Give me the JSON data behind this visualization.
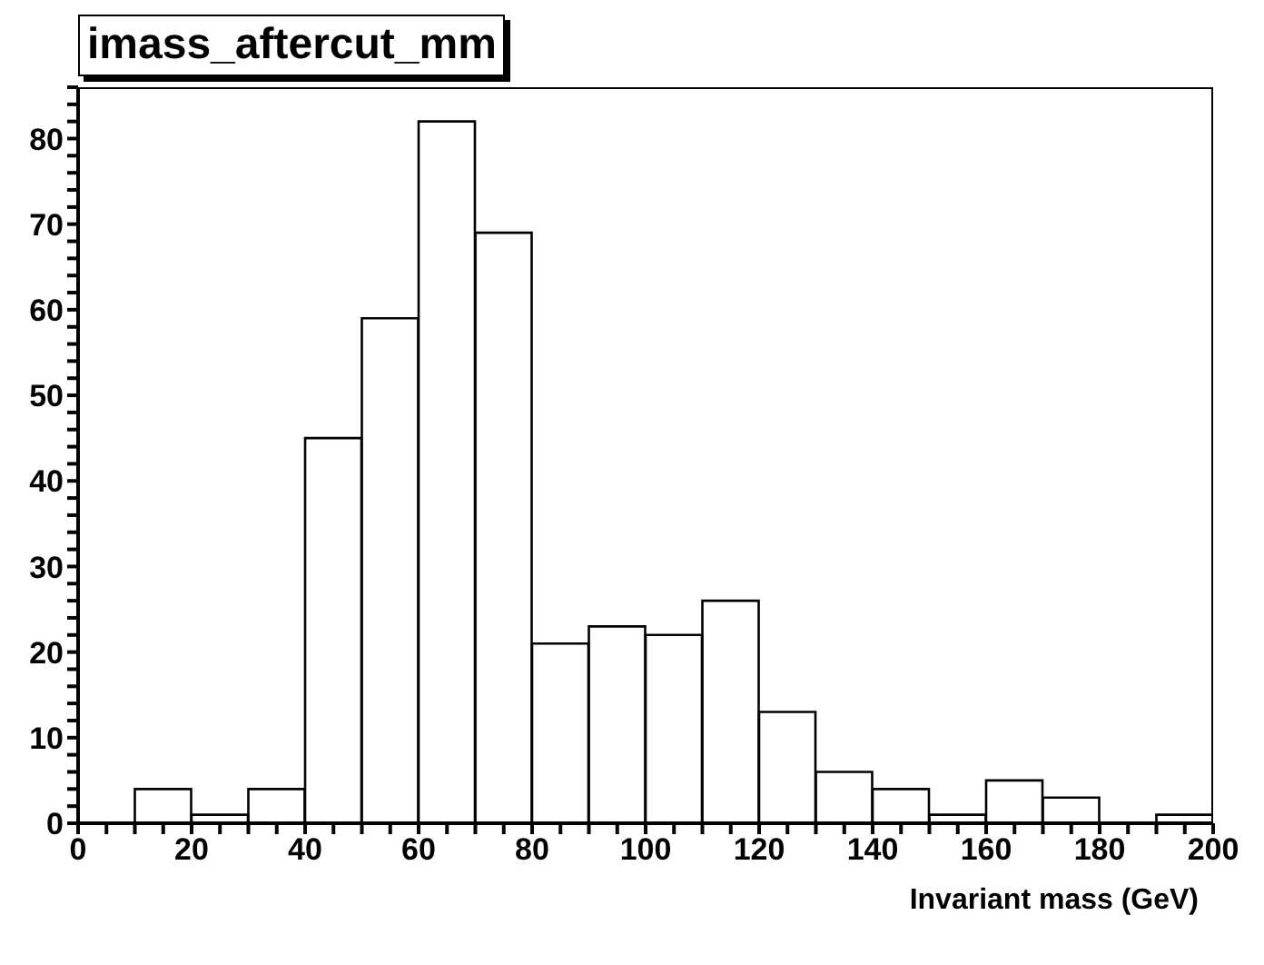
{
  "chart_data": {
    "type": "histogram",
    "title": "imass_aftercut_mm",
    "xlabel": "Invariant mass (GeV)",
    "bins": [
      0,
      10,
      20,
      30,
      40,
      50,
      60,
      70,
      80,
      90,
      100,
      110,
      120,
      130,
      140,
      150,
      160,
      170,
      180,
      190,
      200
    ],
    "values": [
      0,
      4,
      1,
      4,
      45,
      59,
      82,
      69,
      21,
      23,
      22,
      26,
      13,
      6,
      4,
      1,
      5,
      3,
      0,
      1
    ],
    "color": "#000000",
    "xlim": [
      0,
      200
    ],
    "xticks": [
      0,
      {
        "value": 5,
        "label": null
      },
      {
        "value": 10,
        "label": null
      },
      {
        "value": 15,
        "label": null
      },
      20,
      {
        "value": 25,
        "label": null
      },
      {
        "value": 30,
        "label": null
      },
      {
        "value": 35,
        "label": null
      },
      40,
      {
        "value": 45,
        "label": null
      },
      {
        "value": 50,
        "label": null
      },
      {
        "value": 55,
        "label": null
      },
      60,
      {
        "value": 65,
        "label": null
      },
      {
        "value": 70,
        "label": null
      },
      {
        "value": 75,
        "label": null
      },
      80,
      {
        "value": 85,
        "label": null
      },
      {
        "value": 90,
        "label": null
      },
      {
        "value": 95,
        "label": null
      },
      100,
      {
        "value": 105,
        "label": null
      },
      {
        "value": 110,
        "label": null
      },
      {
        "value": 115,
        "label": null
      },
      120,
      {
        "value": 125,
        "label": null
      },
      {
        "value": 130,
        "label": null
      },
      {
        "value": 135,
        "label": null
      },
      140,
      {
        "value": 145,
        "label": null
      },
      {
        "value": 150,
        "label": null
      },
      {
        "value": 155,
        "label": null
      },
      160,
      {
        "value": 165,
        "label": null
      },
      {
        "value": 170,
        "label": null
      },
      {
        "value": 175,
        "label": null
      },
      180,
      {
        "value": 185,
        "label": null
      },
      {
        "value": 190,
        "label": null
      },
      {
        "value": 195,
        "label": null
      },
      200
    ],
    "ylim": [
      0,
      86
    ],
    "yticks": [
      0,
      {
        "value": 2,
        "label": null
      },
      {
        "value": 4,
        "label": null
      },
      {
        "value": 6,
        "label": null
      },
      {
        "value": 8,
        "label": null
      },
      10,
      {
        "value": 12,
        "label": null
      },
      {
        "value": 14,
        "label": null
      },
      {
        "value": 16,
        "label": null
      },
      {
        "value": 18,
        "label": null
      },
      20,
      {
        "value": 22,
        "label": null
      },
      {
        "value": 24,
        "label": null
      },
      {
        "value": 26,
        "label": null
      },
      {
        "value": 28,
        "label": null
      },
      30,
      {
        "value": 32,
        "label": null
      },
      {
        "value": 34,
        "label": null
      },
      {
        "value": 36,
        "label": null
      },
      {
        "value": 38,
        "label": null
      },
      40,
      {
        "value": 42,
        "label": null
      },
      {
        "value": 44,
        "label": null
      },
      {
        "value": 46,
        "label": null
      },
      {
        "value": 48,
        "label": null
      },
      50,
      {
        "value": 52,
        "label": null
      },
      {
        "value": 54,
        "label": null
      },
      {
        "value": 56,
        "label": null
      },
      {
        "value": 58,
        "label": null
      },
      60,
      {
        "value": 62,
        "label": null
      },
      {
        "value": 64,
        "label": null
      },
      {
        "value": 66,
        "label": null
      },
      {
        "value": 68,
        "label": null
      },
      70,
      {
        "value": 72,
        "label": null
      },
      {
        "value": 74,
        "label": null
      },
      {
        "value": 76,
        "label": null
      },
      {
        "value": 78,
        "label": null
      },
      80,
      {
        "value": 82,
        "label": null
      },
      {
        "value": 84,
        "label": null
      },
      {
        "value": 86,
        "label": null
      }
    ],
    "grid": false,
    "legend": false
  }
}
